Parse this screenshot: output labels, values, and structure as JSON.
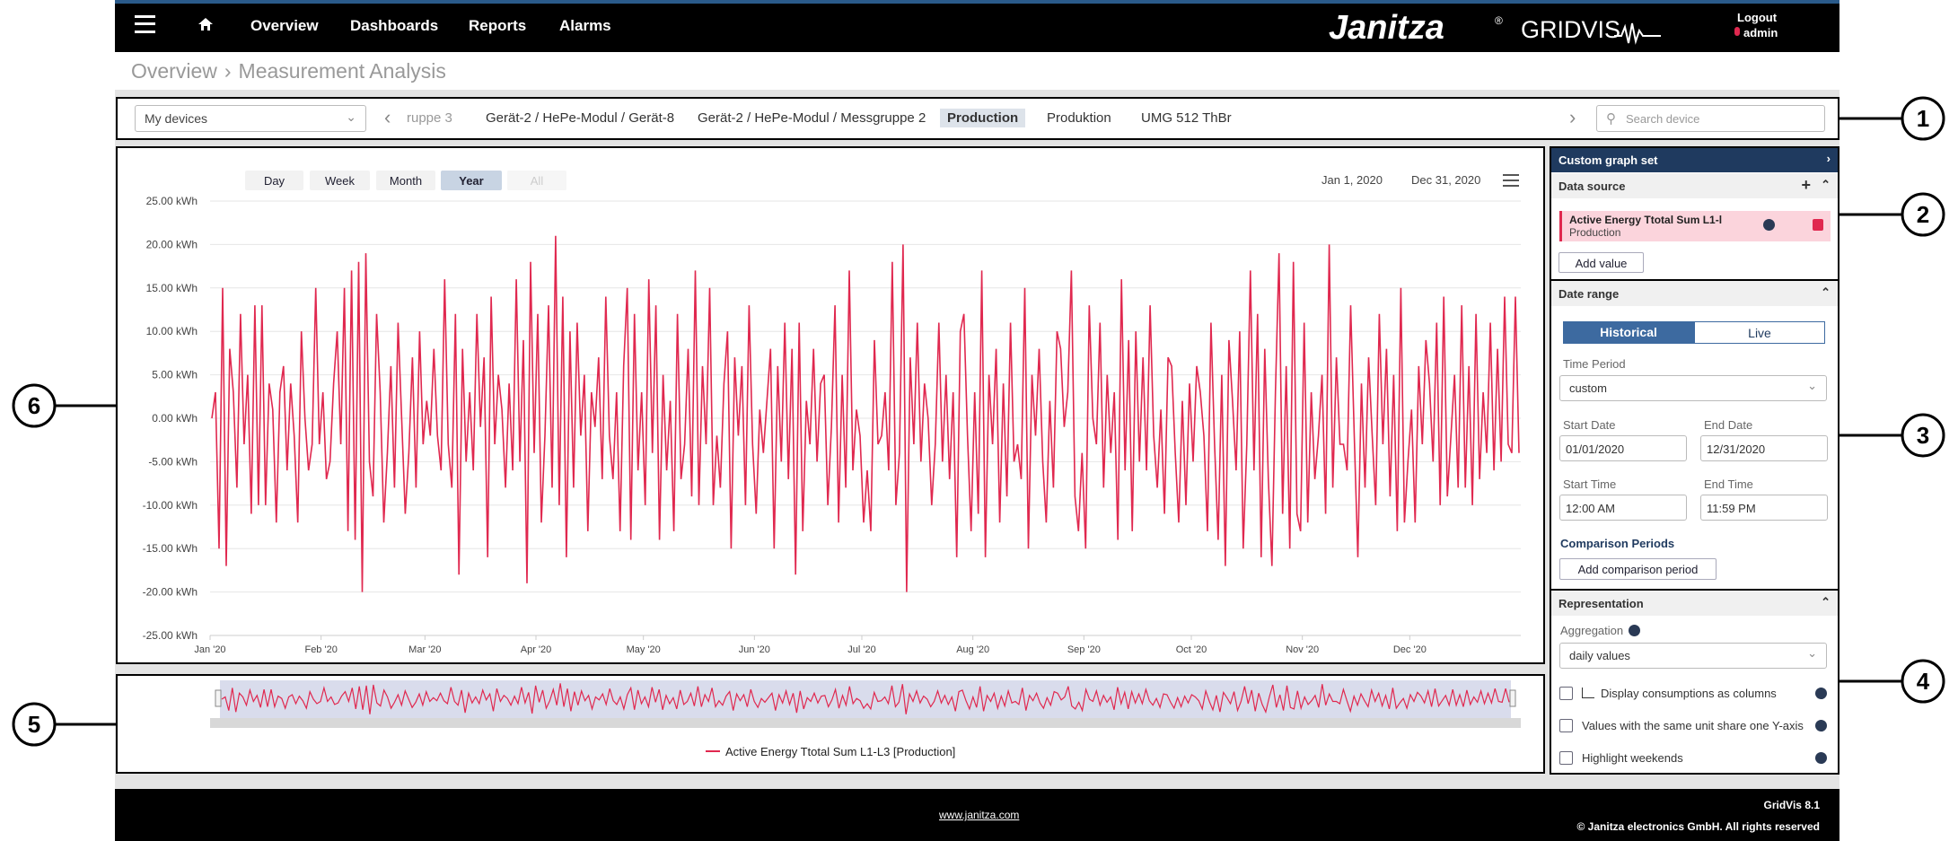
{
  "nav": {
    "items": [
      "Overview",
      "Dashboards",
      "Reports",
      "Alarms"
    ],
    "brand": "Janitza",
    "brand_mark": "®",
    "product": "GRIDVIS",
    "logout": "Logout",
    "user": "admin"
  },
  "breadcrumb": [
    "Overview",
    "Measurement Analysis"
  ],
  "devices": {
    "select": "My devices",
    "tabs": [
      "ruppe 3",
      "Gerät-2 / HePe-Modul / Gerät-8",
      "Gerät-2 / HePe-Modul / Messgruppe 2",
      "Production",
      "Produktion",
      "UMG 512 ThBr"
    ],
    "search": "Search device"
  },
  "range_buttons": [
    "Day",
    "Week",
    "Month",
    "Year",
    "All"
  ],
  "date_from": "Jan 1, 2020",
  "date_to": "Dec 31, 2020",
  "side": {
    "title": "Custom graph set",
    "data_source": "Data source",
    "item_title": "Active Energy Ttotal Sum L1-l",
    "item_sub": "Production",
    "add_value": "Add value",
    "date_range": "Date range",
    "historical": "Historical",
    "live": "Live",
    "time_period": "Time Period",
    "time_period_value": "custom",
    "start_date": "Start Date",
    "start_date_value": "01/01/2020",
    "end_date": "End Date",
    "end_date_value": "12/31/2020",
    "start_time": "Start Time",
    "start_time_value": "12:00 AM",
    "end_time": "End Time",
    "end_time_value": "11:59 PM",
    "comparison": "Comparison Periods",
    "add_comparison": "Add comparison period",
    "representation": "Representation",
    "aggregation": "Aggregation",
    "aggregation_value": "daily values",
    "options": [
      "Display consumptions as columns",
      "Values with the same unit share one Y-axis",
      "Highlight weekends"
    ]
  },
  "footer": {
    "link": "www.janitza.com",
    "version": "GridVis 8.1",
    "copyright": "© Janitza electronics GmbH. All rights reserved"
  },
  "callouts": [
    "1",
    "2",
    "3",
    "4",
    "5",
    "6"
  ],
  "chart_data": {
    "type": "line",
    "grid": true,
    "xlim": [
      0,
      366
    ],
    "xticks": [
      {
        "value": 0,
        "label": "Jan '20"
      },
      {
        "value": 31,
        "label": "Feb '20"
      },
      {
        "value": 60,
        "label": "Mar '20"
      },
      {
        "value": 91,
        "label": "Apr '20"
      },
      {
        "value": 121,
        "label": "May '20"
      },
      {
        "value": 152,
        "label": "Jun '20"
      },
      {
        "value": 182,
        "label": "Jul '20"
      },
      {
        "value": 213,
        "label": "Aug '20"
      },
      {
        "value": 244,
        "label": "Sep '20"
      },
      {
        "value": 274,
        "label": "Oct '20"
      },
      {
        "value": 305,
        "label": "Nov '20"
      },
      {
        "value": 335,
        "label": "Dec '20"
      }
    ],
    "ylim": [
      -25,
      25
    ],
    "yticks": [
      {
        "value": 25,
        "label": "25.00 kWh"
      },
      {
        "value": 20,
        "label": "20.00 kWh"
      },
      {
        "value": 15,
        "label": "15.00 kWh"
      },
      {
        "value": 10,
        "label": "10.00 kWh"
      },
      {
        "value": 5,
        "label": "5.00 kWh"
      },
      {
        "value": 0,
        "label": "0.00 kWh"
      },
      {
        "value": -5,
        "label": "-5.00 kWh"
      },
      {
        "value": -10,
        "label": "-10.00 kWh"
      },
      {
        "value": -15,
        "label": "-15.00 kWh"
      },
      {
        "value": -20,
        "label": "-20.00 kWh"
      },
      {
        "value": -25,
        "label": "-25.00 kWh"
      }
    ],
    "series": [
      {
        "name": "Active Energy Ttotal Sum L1-L3 [Production]",
        "color": "#e0284f",
        "values": [
          0,
          3,
          -15,
          15,
          -17,
          8,
          3,
          -8,
          12,
          -3,
          5,
          -11,
          13,
          -10,
          13,
          -10,
          4,
          1,
          -12,
          3,
          6,
          -6,
          4,
          -2,
          -12,
          10,
          0,
          -6,
          -3,
          15,
          -3,
          3,
          -7,
          -5,
          4,
          10,
          -3,
          15,
          -13,
          17,
          -14,
          18,
          -20,
          19,
          -5,
          -9,
          12,
          3,
          -12,
          -4,
          6,
          -8,
          11,
          0,
          -11,
          -4,
          7,
          -8,
          10,
          -3,
          2,
          -2,
          8,
          -2,
          -6,
          16,
          -3,
          -8,
          12,
          -18,
          8,
          -5,
          3,
          -6,
          12,
          -1,
          7,
          -16,
          14,
          -3,
          5,
          1,
          -8,
          4,
          -6,
          16,
          -5,
          9,
          -19,
          18,
          -4,
          12,
          -12,
          -2,
          13,
          -8,
          21,
          -10,
          14,
          -16,
          10,
          -8,
          11,
          -2,
          5,
          -13,
          3,
          -1,
          7,
          -7,
          14,
          -2,
          -7,
          3,
          -13,
          6,
          15,
          -14,
          12,
          -6,
          3,
          -10,
          16,
          -4,
          13,
          -14,
          5,
          -6,
          2,
          -13,
          12,
          -7,
          -3,
          8,
          -9,
          17,
          -10,
          6,
          -3,
          15,
          -10,
          -2,
          -8,
          4,
          10,
          -15,
          7,
          -2,
          6,
          -10,
          13,
          -3,
          -11,
          1,
          -4,
          2,
          8,
          -15,
          6,
          -5,
          11,
          -7,
          8,
          -18,
          11,
          -13,
          2,
          -3,
          8,
          -5,
          4,
          5,
          -10,
          -1,
          13,
          -12,
          5,
          -8,
          17,
          -6,
          1,
          -2,
          -12,
          -6,
          -13,
          9,
          -3,
          -2,
          3,
          -6,
          18,
          -10,
          -4,
          20,
          -20,
          7,
          -3,
          11,
          -5,
          4,
          0,
          -10,
          -3,
          11,
          -5,
          5,
          -7,
          3,
          -16,
          10,
          12,
          -2,
          -13,
          3,
          -11,
          17,
          -16,
          5,
          -3,
          8,
          -12,
          4,
          -9,
          11,
          -5,
          -3,
          -7,
          15,
          -15,
          5,
          -2,
          8,
          -5,
          -12,
          2,
          -8,
          10,
          8,
          -1,
          3,
          17,
          -9,
          -13,
          -4,
          -15,
          13,
          0,
          -3,
          11,
          -8,
          5,
          -4,
          3,
          -14,
          16,
          -6,
          9,
          -13,
          10,
          -5,
          7,
          -6,
          13,
          -2,
          -8,
          1,
          -11,
          7,
          6,
          -4,
          -12,
          2,
          -10,
          4,
          -5,
          6,
          3,
          -2,
          -13,
          11,
          -3,
          -14,
          5,
          -17,
          9,
          2,
          -6,
          10,
          -15,
          -3,
          17,
          -6,
          12,
          -16,
          8,
          -7,
          -17,
          3,
          19,
          -11,
          6,
          -15,
          18,
          -11,
          -13,
          11,
          -12,
          3,
          -7,
          -2,
          5,
          -11,
          20,
          -8,
          7,
          -3,
          -3,
          -6,
          13,
          -2,
          -16,
          4,
          -8,
          7,
          -2,
          -10,
          12,
          -3,
          8,
          -9,
          5,
          -13,
          15,
          -12,
          -5,
          1,
          -12,
          6,
          -3,
          9,
          4,
          -5,
          11,
          -10,
          14,
          -9,
          -2,
          5,
          -8,
          13,
          -8,
          6,
          -10,
          12,
          -7,
          3,
          -4,
          11,
          -6,
          8,
          -5,
          14,
          -3,
          -4,
          14,
          -4
        ]
      }
    ]
  }
}
